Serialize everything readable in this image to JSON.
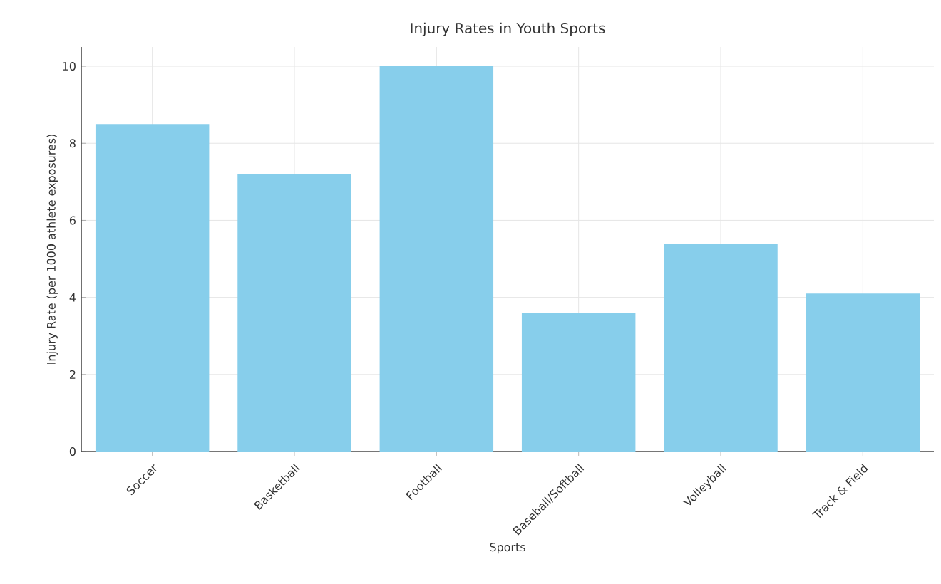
{
  "chart_data": {
    "type": "bar",
    "title": "Injury Rates in Youth Sports",
    "xlabel": "Sports",
    "ylabel": "Injury Rate (per 1000 athlete exposures)",
    "categories": [
      "Soccer",
      "Basketball",
      "Football",
      "Baseball/Softball",
      "Volleyball",
      "Track & Field"
    ],
    "values": [
      8.5,
      7.2,
      10.0,
      3.6,
      5.4,
      4.1
    ],
    "color": "#87ceeb",
    "ylim": [
      0,
      10.5
    ],
    "yticks": [
      0,
      2,
      4,
      6,
      8,
      10
    ],
    "grid": true
  }
}
